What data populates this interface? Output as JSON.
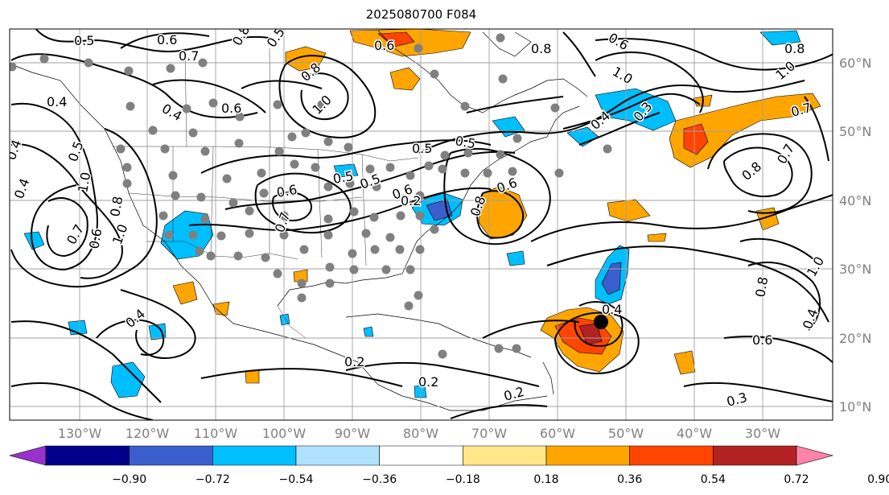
{
  "title": "2025080700 F084",
  "lon_labels": [
    "130°W",
    "120°W",
    "110°W",
    "100°W",
    "90°W",
    "80°W",
    "70°W",
    "60°W",
    "50°W",
    "40°W",
    "30°W"
  ],
  "lat_labels": [
    "60°N",
    "50°N",
    "40°N",
    "30°N",
    "20°N",
    "10°N"
  ],
  "colorbar": {
    "ticks": [
      "−0.90",
      "−0.72",
      "−0.54",
      "−0.36",
      "−0.18",
      "0.18",
      "0.36",
      "0.54",
      "0.72",
      "0.90"
    ],
    "colors": [
      "#9932cc",
      "#00008b",
      "#3a5fcd",
      "#00bfff",
      "#b0e2ff",
      "#ffffff",
      "#ffe78a",
      "#ffa500",
      "#ff4500",
      "#b22222",
      "#ff82ab"
    ]
  },
  "contour_labels": [
    {
      "text": "0.5"
    },
    {
      "text": "0.6"
    },
    {
      "text": "0.7"
    },
    {
      "text": "0.8"
    },
    {
      "text": "0.5"
    },
    {
      "text": "0.6"
    },
    {
      "text": "0.8"
    },
    {
      "text": "0.6"
    },
    {
      "text": "0.8"
    },
    {
      "text": "1.0"
    },
    {
      "text": "0.4"
    },
    {
      "text": "0.6"
    },
    {
      "text": "0.4"
    },
    {
      "text": "0.8"
    },
    {
      "text": "1.0"
    },
    {
      "text": "0.4"
    },
    {
      "text": "0.4"
    },
    {
      "text": "0.5"
    },
    {
      "text": "1.0"
    },
    {
      "text": "0.8"
    },
    {
      "text": "0.7"
    },
    {
      "text": "0.6"
    },
    {
      "text": "0.5"
    },
    {
      "text": "0.5"
    },
    {
      "text": "0.6"
    },
    {
      "text": "0.5"
    },
    {
      "text": "0.4"
    },
    {
      "text": "0.3"
    },
    {
      "text": "1.0"
    },
    {
      "text": "0.7"
    },
    {
      "text": "0.8"
    },
    {
      "text": "0.7"
    },
    {
      "text": "0.6"
    },
    {
      "text": "0.5"
    },
    {
      "text": "0.8"
    },
    {
      "text": "0.7"
    },
    {
      "text": "0.4"
    },
    {
      "text": "1.0"
    },
    {
      "text": "0.6"
    },
    {
      "text": "0.3"
    },
    {
      "text": "0.2"
    },
    {
      "text": "0.2"
    },
    {
      "text": "0.2"
    },
    {
      "text": "0.4"
    },
    {
      "text": "0.2"
    },
    {
      "text": "0.8"
    },
    {
      "text": "0.6"
    },
    {
      "text": "1.0"
    },
    {
      "text": "0.4"
    }
  ]
}
